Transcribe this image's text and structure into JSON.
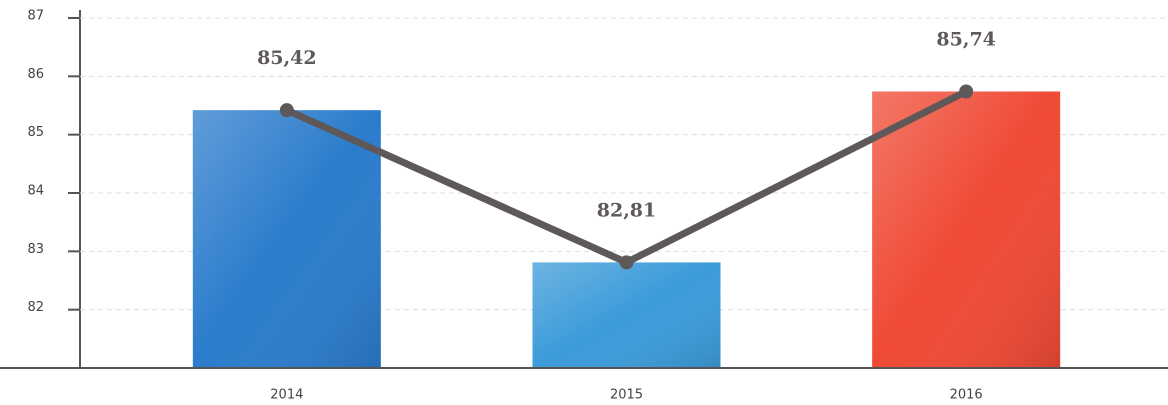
{
  "chart_data": {
    "type": "bar_line",
    "categories": [
      "2014",
      "2015",
      "2016"
    ],
    "values": [
      85.42,
      82.81,
      85.74
    ],
    "value_labels": [
      "85,42",
      "82,81",
      "85,74"
    ],
    "colors": [
      "#2b7ccc",
      "#3c9bd9",
      "#ef4a35"
    ],
    "line_color": "#5e5958",
    "ylim": [
      81,
      87
    ],
    "yticks": [
      82,
      83,
      84,
      85,
      86,
      87
    ],
    "grid": true
  }
}
